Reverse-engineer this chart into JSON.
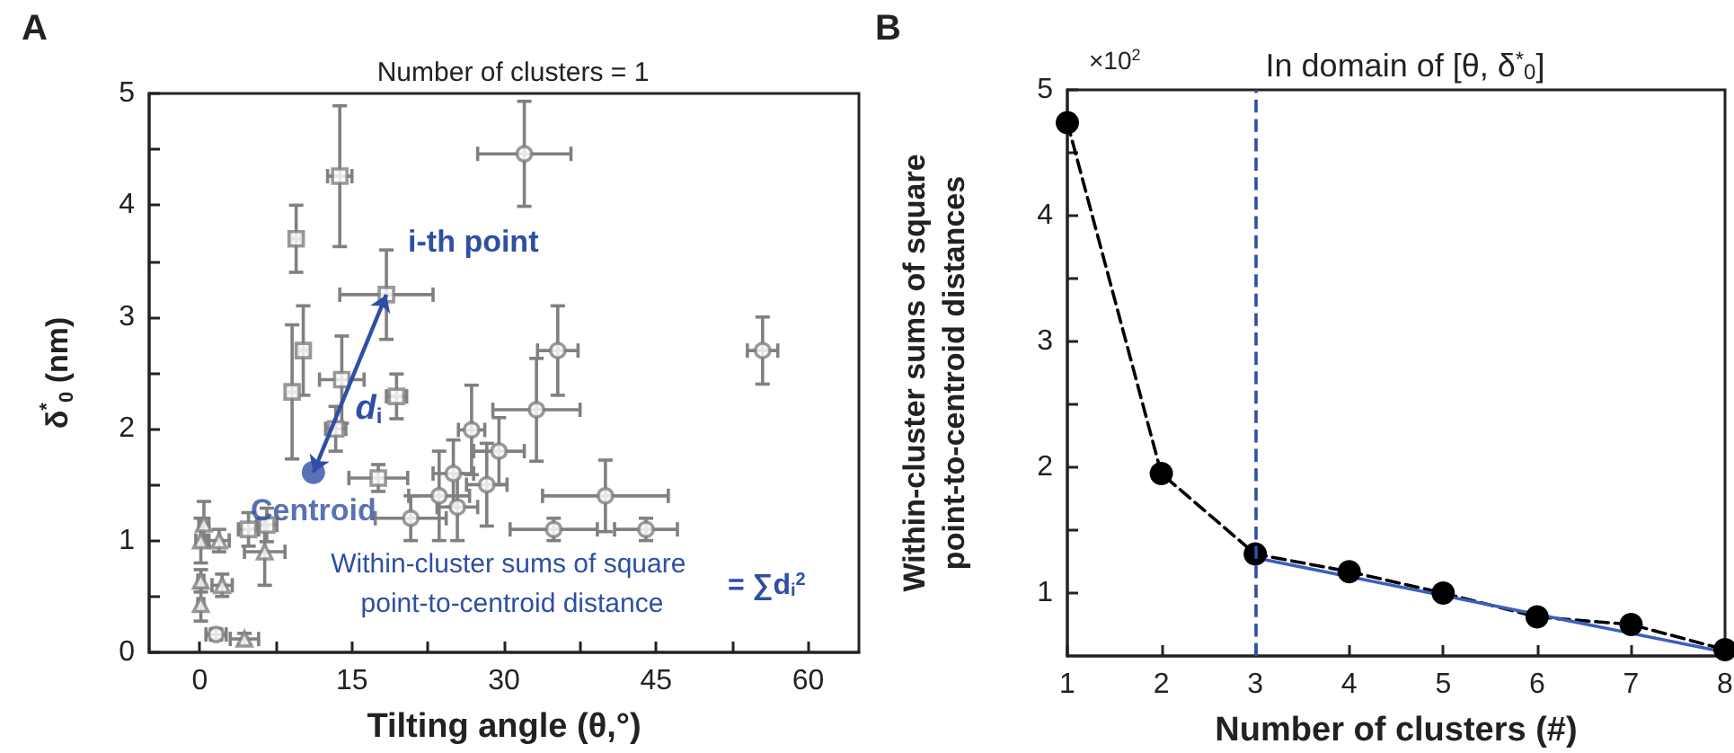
{
  "chart_data": [
    {
      "type": "scatter",
      "title": "Number of clusters = 1",
      "xlabel": "Tilting angle (θ,°)",
      "ylabel": "δ$^{*}$$_{0}$ (nm)",
      "xlim": [
        -5,
        65
      ],
      "xticks": [
        0,
        {
          "value": 7.5,
          "label": null
        },
        15,
        {
          "value": 22.5,
          "label": null
        },
        30,
        {
          "value": 37.5,
          "label": null
        },
        45,
        {
          "value": 52.5,
          "label": null
        },
        60
      ],
      "ylim": [
        0,
        5
      ],
      "yticks": [
        0,
        {
          "value": 0.5,
          "label": null
        },
        1,
        {
          "value": 1.5,
          "label": null
        },
        2,
        {
          "value": 2.5,
          "label": null
        },
        3,
        {
          "value": 3.5,
          "label": null
        },
        4,
        {
          "value": 4.5,
          "label": null
        },
        5
      ],
      "grid": false,
      "annotations": [
        "A",
        {
          "text": "i-th point",
          "x": 18.4,
          "y": 3.2
        },
        "d$_{i}$",
        "Within-cluster sums of square point-to-centroid distance",
        "= ∑d$_{i}$$^{2}$"
      ],
      "series": [
        {
          "color": "#808080",
          "marker": "square",
          "x": [
            13.8,
            9.5,
            18.4,
            10.2,
            9.1,
            14,
            19.4,
            13.4,
            17.6,
            4.8,
            6.6
          ],
          "values": [
            4.26,
            3.7,
            3.2,
            2.7,
            2.33,
            2.44,
            2.29,
            2.0,
            1.56,
            1.1,
            1.14
          ],
          "errors": [
            0.63,
            0.3,
            0.4,
            0.4,
            0.6,
            0.39,
            0.2,
            0.2,
            0.12,
            0.15,
            0.15
          ],
          "xerrors": [
            1.2,
            0.5,
            4.6,
            0.5,
            0.5,
            2.2,
            1,
            1,
            2.9,
            1,
            1
          ]
        },
        {
          "color": "#808080",
          "marker": "circle",
          "x": [
            32,
            35.3,
            55.5,
            33.2,
            26.8,
            29.5,
            25,
            28.3,
            23.6,
            25.4,
            20.8,
            40,
            34.9,
            44,
            1.6
          ],
          "values": [
            4.46,
            2.7,
            2.7,
            2.17,
            1.99,
            1.8,
            1.6,
            1.5,
            1.4,
            1.3,
            1.2,
            1.4,
            1.1,
            1.1,
            0.16
          ],
          "errors": [
            0.47,
            0.4,
            0.3,
            0.46,
            0.4,
            0.3,
            0.3,
            0.37,
            0.4,
            0.3,
            0.2,
            0.32,
            0.1,
            0.1,
            0.05
          ],
          "xerrors": [
            4.6,
            2,
            1.5,
            4.3,
            1.3,
            2.5,
            2,
            2,
            3,
            2,
            3.5,
            6.2,
            4.3,
            3.1,
            1
          ]
        },
        {
          "color": "#808080",
          "marker": "triangle",
          "x": [
            0.4,
            0.1,
            1.9,
            6.4,
            2.2,
            0.1,
            0.1,
            4.4
          ],
          "values": [
            1.15,
            1.0,
            1.0,
            0.9,
            0.6,
            0.64,
            0.43,
            0.12
          ],
          "errors": [
            0.2,
            0.2,
            0.1,
            0.3,
            0.1,
            0.1,
            0.15,
            0.05
          ],
          "xerrors": [
            0.5,
            0.5,
            1,
            2,
            1,
            0.3,
            0.3,
            1.4
          ]
        },
        {
          "name": "Centroid",
          "color": "#2e4fa3",
          "marker": "circle",
          "x": [
            11.2
          ],
          "values": [
            1.61
          ]
        }
      ]
    },
    {
      "type": "line",
      "title": "In domain of [θ, δ$^{*}$$_{0}$]",
      "xlabel": "Number of clusters (#)",
      "ylabel": "Within-cluster sums of square point-to-centroid distances",
      "xlim": [
        1,
        8
      ],
      "xticks": [
        1,
        2,
        3,
        4,
        5,
        6,
        7,
        8
      ],
      "ylim": [
        0.5,
        5
      ],
      "yticks": [
        1,
        {
          "value": 1.5,
          "label": null
        },
        2,
        {
          "value": 2.5,
          "label": null
        },
        3,
        {
          "value": 3.5,
          "label": null
        },
        4,
        {
          "value": 4.5,
          "label": null
        },
        5
      ],
      "grid": false,
      "annotations": [
        "B",
        "×10$^{2}$"
      ],
      "ref_lines": [
        {
          "axis": "x",
          "value": 3,
          "color": "#2e4fa3",
          "line_style": "dashed"
        }
      ],
      "series": [
        {
          "color": "#000000",
          "marker": "circle",
          "line_style": "dashed",
          "x": [
            1,
            2,
            3,
            4,
            5,
            6,
            7,
            8
          ],
          "values": [
            4.74,
            1.95,
            1.31,
            1.17,
            1.0,
            0.81,
            0.75,
            0.55
          ]
        },
        {
          "color": "#3a5fbf",
          "marker": "none",
          "line_style": "solid",
          "x": [
            3,
            8
          ],
          "values": [
            1.28,
            0.53
          ]
        }
      ]
    }
  ]
}
